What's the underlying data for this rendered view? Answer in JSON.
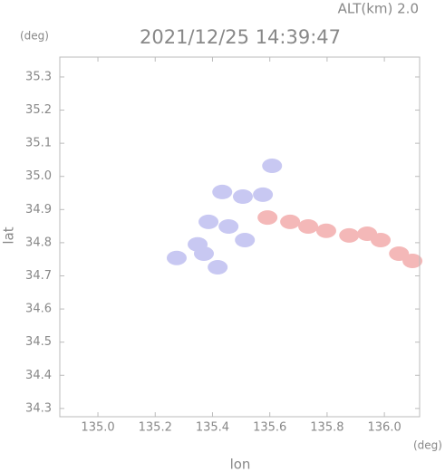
{
  "chart_data": {
    "type": "scatter",
    "title": "2021/12/25 14:39:47",
    "subtitle": "ALT(km) 2.0",
    "x_label": "lon",
    "y_label": "lat",
    "x_unit": "(deg)",
    "y_unit": "(deg)",
    "xlim": [
      134.867,
      136.123
    ],
    "ylim": [
      34.275,
      35.36
    ],
    "xticks": [
      {
        "value": 135,
        "label": "135.0"
      },
      135.2,
      135.4,
      135.6,
      135.8,
      {
        "value": 136,
        "label": "136.0"
      }
    ],
    "yticks": [
      34.3,
      34.4,
      34.5,
      34.6,
      34.7,
      {
        "value": 35,
        "label": "35.0"
      },
      34.8,
      34.9,
      35.1,
      35.2,
      35.3
    ],
    "series": [
      {
        "color": "#c8c8f2",
        "x": [
          135.608,
          135.434,
          135.506,
          135.576,
          135.386,
          135.456,
          135.348,
          135.37,
          135.418,
          135.275,
          135.513
        ],
        "y": [
          35.032,
          34.953,
          34.939,
          34.945,
          34.863,
          34.849,
          34.795,
          34.767,
          34.726,
          34.754,
          34.808
        ]
      },
      {
        "color": "#f4b8b8",
        "x": [
          135.592,
          135.671,
          135.734,
          135.797,
          135.877,
          135.94,
          135.987,
          136.051,
          136.098
        ],
        "y": [
          34.876,
          34.863,
          34.849,
          34.836,
          34.822,
          34.827,
          34.808,
          34.767,
          34.745
        ]
      }
    ]
  }
}
